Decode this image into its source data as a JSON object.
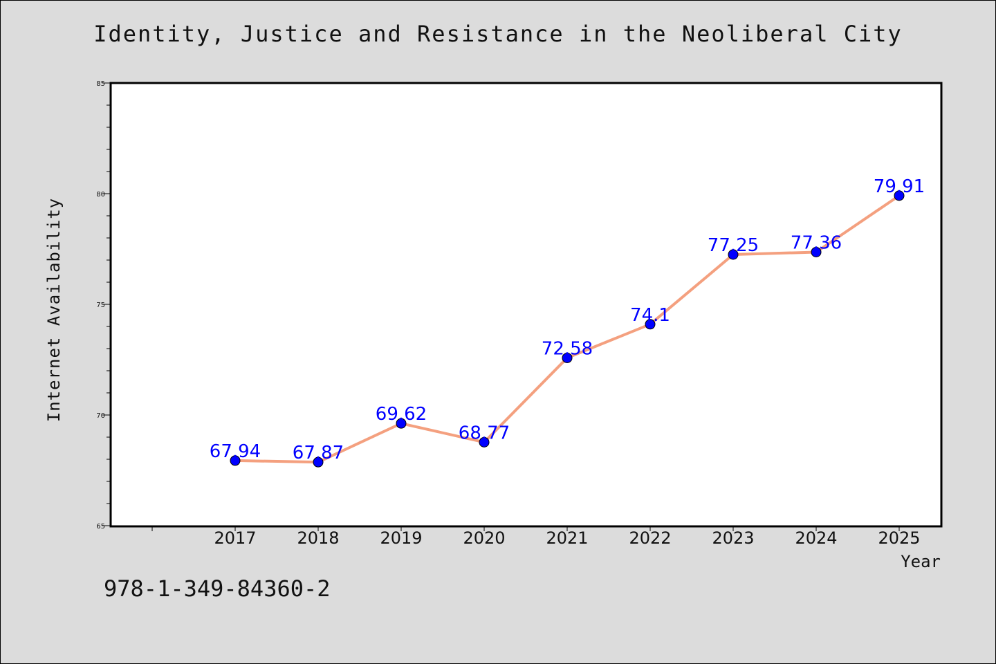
{
  "page": {
    "title": "Identity, Justice and Resistance in the Neoliberal City",
    "footer_text": "978-1-349-84360-2"
  },
  "chart_data": {
    "type": "line",
    "title": "Identity, Justice and Resistance in the Neoliberal City",
    "xlabel": "Year",
    "ylabel": "Internet Availability",
    "categories": [
      "2017",
      "2018",
      "2019",
      "2020",
      "2021",
      "2022",
      "2023",
      "2024",
      "2025"
    ],
    "values": [
      67.94,
      67.87,
      69.62,
      68.77,
      72.58,
      74.1,
      77.25,
      77.36,
      79.91
    ],
    "data_labels": [
      "67.94",
      "67.87",
      "69.62",
      "68.77",
      "72.58",
      "74.1",
      "77.25",
      "77.36",
      "79.91"
    ],
    "ylim": [
      65,
      85
    ],
    "yticks": [
      "65",
      "70",
      "75",
      "80",
      "85"
    ],
    "grid": false,
    "line_color": "#f4a07f",
    "marker_color": "#0000ff",
    "label_color": "#0000ff",
    "plot_background": "#ffffff",
    "figure_background": "#dcdcdc"
  }
}
